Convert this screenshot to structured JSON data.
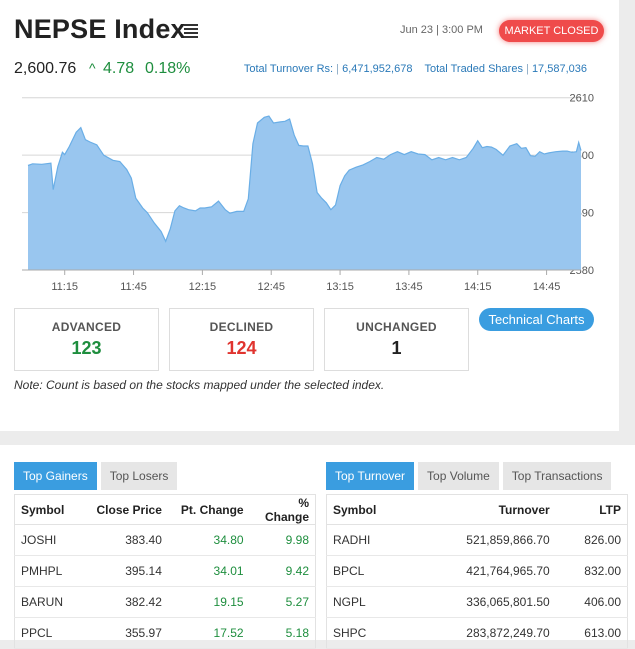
{
  "header": {
    "title": "NEPSE Index",
    "datetime": "Jun 23 | 3:00 PM",
    "status": "MARKET CLOSED",
    "index_value": "2,600.76",
    "change_arrow": "^",
    "change": "4.78",
    "change_pct": "0.18%",
    "turnover_label": "Total Turnover Rs:",
    "turnover_value": "6,471,952,678",
    "shares_label": "Total Traded Shares",
    "shares_value": "17,587,036"
  },
  "colors": {
    "up": "#1e8e3e",
    "down": "#e0342f",
    "accent": "#3a9de0",
    "status": "#ef4b4b",
    "chart_fill": "#99c6ef",
    "chart_line": "#6aaee6"
  },
  "chart_data": {
    "type": "area",
    "title": "",
    "xlabel": "",
    "ylabel": "",
    "x_ticks": [
      "11:15",
      "11:45",
      "12:15",
      "12:45",
      "13:15",
      "13:45",
      "14:15",
      "14:45"
    ],
    "y_ticks": [
      2580,
      2590,
      2600,
      2610
    ],
    "ylim": [
      2580,
      2611
    ],
    "xlim": [
      "10:59",
      "15:00"
    ],
    "series": [
      {
        "values": [
          [
            "10:59",
            2598.2
          ],
          [
            "11:01",
            2598.5
          ],
          [
            "11:05",
            2598.4
          ],
          [
            "11:09",
            2598.6
          ],
          [
            "11:10",
            2594.0
          ],
          [
            "11:12",
            2598.0
          ],
          [
            "11:14",
            2600.5
          ],
          [
            "11:15",
            2600.1
          ],
          [
            "11:17",
            2601.5
          ],
          [
            "11:20",
            2604.0
          ],
          [
            "11:22",
            2604.8
          ],
          [
            "11:24",
            2602.7
          ],
          [
            "11:26",
            2602.3
          ],
          [
            "11:29",
            2601.8
          ],
          [
            "11:32",
            2600.0
          ],
          [
            "11:36",
            2599.1
          ],
          [
            "11:39",
            2598.9
          ],
          [
            "11:42",
            2597.5
          ],
          [
            "11:44",
            2596.0
          ],
          [
            "11:46",
            2592.5
          ],
          [
            "11:49",
            2590.8
          ],
          [
            "11:51",
            2590.0
          ],
          [
            "11:54",
            2588.2
          ],
          [
            "11:57",
            2586.7
          ],
          [
            "11:59",
            2585.0
          ],
          [
            "12:01",
            2587.2
          ],
          [
            "12:03",
            2590.3
          ],
          [
            "12:05",
            2591.2
          ],
          [
            "12:07",
            2590.8
          ],
          [
            "12:09",
            2590.5
          ],
          [
            "12:12",
            2590.3
          ],
          [
            "12:14",
            2590.8
          ],
          [
            "12:16",
            2590.8
          ],
          [
            "12:19",
            2591.0
          ],
          [
            "12:22",
            2592.0
          ],
          [
            "12:25",
            2590.5
          ],
          [
            "12:27",
            2589.9
          ],
          [
            "12:30",
            2590.2
          ],
          [
            "12:33",
            2590.2
          ],
          [
            "12:35",
            2592.4
          ],
          [
            "12:37",
            2602.0
          ],
          [
            "12:39",
            2605.6
          ],
          [
            "12:42",
            2606.6
          ],
          [
            "12:44",
            2606.8
          ],
          [
            "12:46",
            2605.6
          ],
          [
            "12:49",
            2605.8
          ],
          [
            "12:51",
            2605.9
          ],
          [
            "12:53",
            2606.3
          ],
          [
            "12:55",
            2603.5
          ],
          [
            "12:57",
            2601.7
          ],
          [
            "12:59",
            2601.6
          ],
          [
            "13:01",
            2601.6
          ],
          [
            "13:03",
            2598.5
          ],
          [
            "13:05",
            2593.5
          ],
          [
            "13:07",
            2592.5
          ],
          [
            "13:09",
            2591.7
          ],
          [
            "13:11",
            2590.5
          ],
          [
            "13:13",
            2591.3
          ],
          [
            "13:15",
            2594.7
          ],
          [
            "13:17",
            2596.4
          ],
          [
            "13:19",
            2597.4
          ],
          [
            "13:22",
            2597.9
          ],
          [
            "13:25",
            2598.3
          ],
          [
            "13:28",
            2598.9
          ],
          [
            "13:31",
            2599.6
          ],
          [
            "13:34",
            2599.3
          ],
          [
            "13:37",
            2600.1
          ],
          [
            "13:40",
            2600.6
          ],
          [
            "13:43",
            2600.1
          ],
          [
            "13:46",
            2600.6
          ],
          [
            "13:49",
            2600.2
          ],
          [
            "13:52",
            2600.1
          ],
          [
            "13:55",
            2599.2
          ],
          [
            "13:58",
            2599.6
          ],
          [
            "14:01",
            2599.2
          ],
          [
            "14:04",
            2599.6
          ],
          [
            "14:07",
            2599.2
          ],
          [
            "14:10",
            2599.6
          ],
          [
            "14:13",
            2601.2
          ],
          [
            "14:15",
            2602.5
          ],
          [
            "14:17",
            2601.3
          ],
          [
            "14:19",
            2601.5
          ],
          [
            "14:21",
            2601.4
          ],
          [
            "14:23",
            2601.0
          ],
          [
            "14:26",
            2600.0
          ],
          [
            "14:29",
            2601.6
          ],
          [
            "14:32",
            2602.0
          ],
          [
            "14:34",
            2601.2
          ],
          [
            "14:36",
            2601.3
          ],
          [
            "14:38",
            2599.9
          ],
          [
            "14:40",
            2599.8
          ],
          [
            "14:42",
            2600.6
          ],
          [
            "14:44",
            2600.2
          ],
          [
            "14:46",
            2600.4
          ],
          [
            "14:49",
            2600.6
          ],
          [
            "14:52",
            2600.7
          ],
          [
            "14:54",
            2600.7
          ],
          [
            "14:56",
            2600.5
          ],
          [
            "14:58",
            2600.6
          ],
          [
            "14:59",
            2602.2
          ],
          [
            "15:00",
            2600.8
          ]
        ]
      }
    ]
  },
  "counts": {
    "advanced_label": "ADVANCED",
    "advanced": "123",
    "declined_label": "DECLINED",
    "declined": "124",
    "unchanged_label": "UNCHANGED",
    "unchanged": "1"
  },
  "tech_button": "Technical Charts",
  "note": "Note: Count is based on the stocks mapped under the selected index.",
  "left_panel": {
    "tabs": [
      "Top Gainers",
      "Top Losers"
    ],
    "active_tab": 0,
    "headers": [
      "Symbol",
      "Close Price",
      "Pt. Change",
      "% Change"
    ],
    "rows": [
      [
        "JOSHI",
        "383.40",
        "34.80",
        "9.98"
      ],
      [
        "PMHPL",
        "395.14",
        "34.01",
        "9.42"
      ],
      [
        "BARUN",
        "382.42",
        "19.15",
        "5.27"
      ],
      [
        "PPCL",
        "355.97",
        "17.52",
        "5.18"
      ]
    ]
  },
  "right_panel": {
    "tabs": [
      "Top Turnover",
      "Top Volume",
      "Top Transactions"
    ],
    "active_tab": 0,
    "headers": [
      "Symbol",
      "Turnover",
      "LTP"
    ],
    "rows": [
      [
        "RADHI",
        "521,859,866.70",
        "826.00"
      ],
      [
        "BPCL",
        "421,764,965.70",
        "832.00"
      ],
      [
        "NGPL",
        "336,065,801.50",
        "406.00"
      ],
      [
        "SHPC",
        "283,872,249.70",
        "613.00"
      ]
    ]
  }
}
